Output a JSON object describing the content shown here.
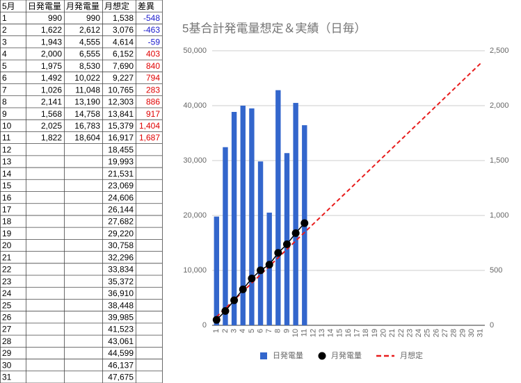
{
  "table": {
    "header": [
      "5月",
      "日発電量",
      "月発電量",
      "月想定",
      "差異"
    ],
    "rows": [
      [
        "1",
        "990",
        "990",
        "1,538",
        "-548"
      ],
      [
        "2",
        "1,622",
        "2,612",
        "3,076",
        "-463"
      ],
      [
        "3",
        "1,943",
        "4,555",
        "4,614",
        "-59"
      ],
      [
        "4",
        "2,000",
        "6,555",
        "6,152",
        "403"
      ],
      [
        "5",
        "1,975",
        "8,530",
        "7,690",
        "840"
      ],
      [
        "6",
        "1,492",
        "10,022",
        "9,227",
        "794"
      ],
      [
        "7",
        "1,026",
        "11,048",
        "10,765",
        "283"
      ],
      [
        "8",
        "2,141",
        "13,190",
        "12,303",
        "886"
      ],
      [
        "9",
        "1,568",
        "14,758",
        "13,841",
        "917"
      ],
      [
        "10",
        "2,025",
        "16,783",
        "15,379",
        "1,404"
      ],
      [
        "11",
        "1,822",
        "18,604",
        "16,917",
        "1,687"
      ],
      [
        "12",
        null,
        null,
        "18,455",
        null
      ],
      [
        "13",
        null,
        null,
        "19,993",
        null
      ],
      [
        "14",
        null,
        null,
        "21,531",
        null
      ],
      [
        "15",
        null,
        null,
        "23,069",
        null
      ],
      [
        "16",
        null,
        null,
        "24,606",
        null
      ],
      [
        "17",
        null,
        null,
        "26,144",
        null
      ],
      [
        "18",
        null,
        null,
        "27,682",
        null
      ],
      [
        "19",
        null,
        null,
        "29,220",
        null
      ],
      [
        "20",
        null,
        null,
        "30,758",
        null
      ],
      [
        "21",
        null,
        null,
        "32,296",
        null
      ],
      [
        "22",
        null,
        null,
        "33,834",
        null
      ],
      [
        "23",
        null,
        null,
        "35,372",
        null
      ],
      [
        "24",
        null,
        null,
        "36,910",
        null
      ],
      [
        "25",
        null,
        null,
        "38,448",
        null
      ],
      [
        "26",
        null,
        null,
        "39,985",
        null
      ],
      [
        "27",
        null,
        null,
        "41,523",
        null
      ],
      [
        "28",
        null,
        null,
        "43,061",
        null
      ],
      [
        "29",
        null,
        null,
        "44,599",
        null
      ],
      [
        "30",
        null,
        null,
        "46,137",
        null
      ],
      [
        "31",
        null,
        null,
        "47,675",
        null
      ]
    ]
  },
  "chart_data": {
    "type": "combo",
    "title": "5基合計発電量想定＆実績（日毎）",
    "categories": [
      1,
      2,
      3,
      4,
      5,
      6,
      7,
      8,
      9,
      10,
      11,
      12,
      13,
      14,
      15,
      16,
      17,
      18,
      19,
      20,
      21,
      22,
      23,
      24,
      25,
      26,
      27,
      28,
      29,
      30,
      31
    ],
    "series": [
      {
        "name": "日発電量",
        "type": "bar",
        "color": "#3366cc",
        "axis": "y2",
        "values": [
          990,
          1622,
          1943,
          2000,
          1975,
          1492,
          1026,
          2141,
          1568,
          2025,
          1822,
          null,
          null,
          null,
          null,
          null,
          null,
          null,
          null,
          null,
          null,
          null,
          null,
          null,
          null,
          null,
          null,
          null,
          null,
          null,
          null
        ]
      },
      {
        "name": "月発電量",
        "type": "scatter",
        "color": "#000000",
        "values": [
          990,
          2612,
          4555,
          6555,
          8530,
          10022,
          11048,
          13190,
          14758,
          16783,
          18604,
          null,
          null,
          null,
          null,
          null,
          null,
          null,
          null,
          null,
          null,
          null,
          null,
          null,
          null,
          null,
          null,
          null,
          null,
          null,
          null
        ]
      },
      {
        "name": "月想定",
        "type": "line",
        "dashed": true,
        "color": "#e81c1c",
        "values": [
          1538,
          3076,
          4614,
          6152,
          7690,
          9227,
          10765,
          12303,
          13841,
          15379,
          16917,
          18455,
          19993,
          21531,
          23069,
          24606,
          26144,
          27682,
          29220,
          30758,
          32296,
          33834,
          35372,
          36910,
          38448,
          39985,
          41523,
          43061,
          44599,
          46137,
          47675
        ]
      }
    ],
    "ylim": [
      0,
      50000
    ],
    "yticks": [
      0,
      {
        "value": 10000,
        "label": "10,000"
      },
      {
        "value": 20000,
        "label": "20,000"
      },
      {
        "value": 30000,
        "label": "30,000"
      },
      {
        "value": 40000,
        "label": "40,000"
      },
      {
        "value": 50000,
        "label": "50,000"
      }
    ],
    "y2lim": [
      0,
      2500
    ],
    "y2ticks": [
      0,
      500,
      {
        "value": 1000,
        "label": "1,000"
      },
      {
        "value": 1500,
        "label": "1,500"
      },
      {
        "value": 2000,
        "label": "2,000"
      },
      {
        "value": 2500,
        "label": "2,500"
      }
    ],
    "grid": true,
    "legend": "bottom"
  }
}
